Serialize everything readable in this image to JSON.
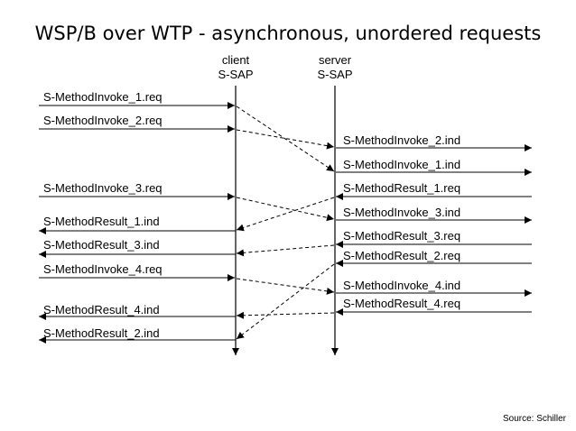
{
  "title": "WSP/B over WTP - asynchronous, unordered requests",
  "client_header": [
    "client",
    "S-SAP"
  ],
  "server_header": [
    "server",
    "S-SAP"
  ],
  "source": "Source: Schiller",
  "colors": {
    "line": "#000000",
    "background": "#ffffff"
  },
  "client_labels": [
    "S-MethodInvoke_1.req",
    "S-MethodInvoke_2.req",
    "S-MethodInvoke_3.req",
    "S-MethodResult_1.ind",
    "S-MethodResult_3.ind",
    "S-MethodInvoke_4.req",
    "S-MethodResult_4.ind",
    "S-MethodResult_2.ind"
  ],
  "server_labels": [
    "S-MethodInvoke_2.ind",
    "S-MethodInvoke_1.ind",
    "S-MethodResult_1.req",
    "S-MethodInvoke_3.ind",
    "S-MethodResult_3.req",
    "S-MethodResult_2.req",
    "S-MethodInvoke_4.ind",
    "S-MethodResult_4.req"
  ]
}
